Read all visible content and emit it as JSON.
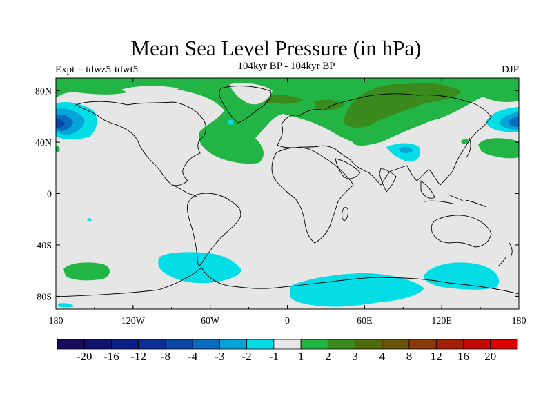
{
  "header": {
    "title": "Mean Sea Level Pressure (in hPa)",
    "subtitle": "104kyr BP - 104kyr BP",
    "experiment": "Expt = tdwz5-tdwt5",
    "season": "DJF"
  },
  "chart_data": {
    "type": "heatmap",
    "title": "Mean Sea Level Pressure (in hPa)",
    "x_ticks": [
      "180",
      "120W",
      "60W",
      "0",
      "60E",
      "120E",
      "180"
    ],
    "y_ticks": [
      "80N",
      "40N",
      "0",
      "40S",
      "80S"
    ],
    "xlim": [
      -180,
      180
    ],
    "ylim": [
      -90,
      90
    ],
    "colorbar": {
      "labels": [
        "-20",
        "-16",
        "-12",
        "-8",
        "-4",
        "-3",
        "-2",
        "-1",
        "1",
        "2",
        "3",
        "4",
        "8",
        "12",
        "16",
        "20"
      ],
      "colors": [
        "#1a0a5e",
        "#0f126e",
        "#0a1d85",
        "#0a2d98",
        "#0b47a8",
        "#0a6cbf",
        "#05a4d8",
        "#05dde6",
        "#e6e6e6",
        "#22b445",
        "#3a8a1e",
        "#4f6a0a",
        "#6a5408",
        "#8a3a06",
        "#a41d05",
        "#c40a05",
        "#dd0000"
      ]
    },
    "regions": [
      {
        "name": "Arctic / high-latitude positive anomaly",
        "level": "1 to 2"
      },
      {
        "name": "Siberia positive anomaly",
        "level": "2 to 3"
      },
      {
        "name": "North Atlantic positive anomaly",
        "level": "1 to 2"
      },
      {
        "name": "North Pacific (west of 180) negative anomaly",
        "level": "-4 to -1"
      },
      {
        "name": "North Pacific (east of 180) negative anomaly",
        "level": "-3 to -1"
      },
      {
        "name": "Central Asia negative anomaly",
        "level": "-2 to -1"
      },
      {
        "name": "Southern Ocean (South Atlantic / Indian) negative anomaly",
        "level": "-2 to -1"
      },
      {
        "name": "Southeast Pacific negative anomaly",
        "level": "-2 to -1"
      },
      {
        "name": "South Pacific positive anomaly",
        "level": "1 to 2"
      },
      {
        "name": "North-west Pacific positive anomaly",
        "level": "1 to 2"
      }
    ]
  }
}
